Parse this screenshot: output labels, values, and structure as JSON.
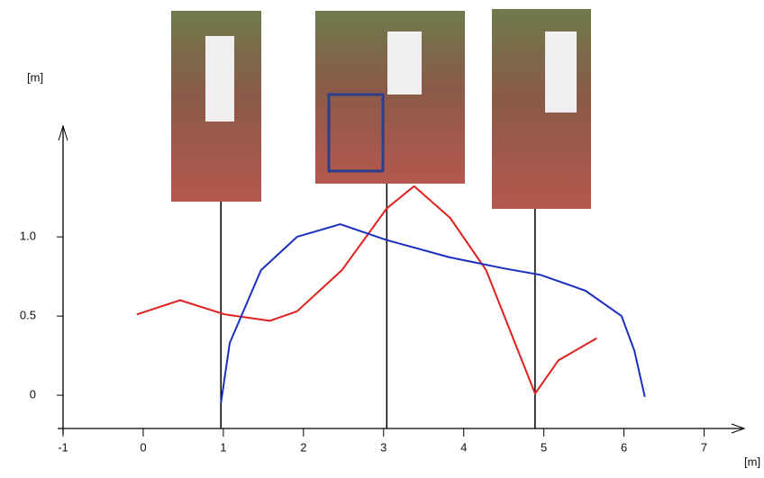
{
  "chart_data": {
    "type": "line",
    "xlabel": "[m]",
    "ylabel": "[m]",
    "xlim": [
      -1,
      7.5
    ],
    "ylim": [
      -0.21,
      1.7
    ],
    "xticks": [
      -1,
      0,
      1,
      2,
      3,
      4,
      5,
      6,
      7
    ],
    "yticks": [
      0,
      0.5,
      {
        "value": 1,
        "label": "1.0"
      }
    ],
    "vlines": [
      0.97,
      3.04,
      4.89
    ],
    "series": [
      {
        "color": "#e0201c",
        "x": [
          -0.08,
          0.46,
          1.02,
          1.58,
          1.92,
          2.48,
          3.04,
          3.38,
          3.83,
          4.28,
          4.89,
          5.18,
          5.66
        ],
        "values": [
          0.51,
          0.6,
          0.51,
          0.47,
          0.53,
          0.79,
          1.18,
          1.32,
          1.12,
          0.79,
          0.01,
          0.22,
          0.36
        ]
      },
      {
        "color": "#1a2fc0",
        "x": [
          0.97,
          1.08,
          1.47,
          1.92,
          2.46,
          3.04,
          3.83,
          4.51,
          4.96,
          5.52,
          5.97,
          6.13,
          6.26
        ],
        "values": [
          -0.05,
          0.33,
          0.79,
          1.0,
          1.08,
          0.98,
          0.87,
          0.8,
          0.76,
          0.66,
          0.5,
          0.28,
          -0.01
        ]
      }
    ]
  }
}
